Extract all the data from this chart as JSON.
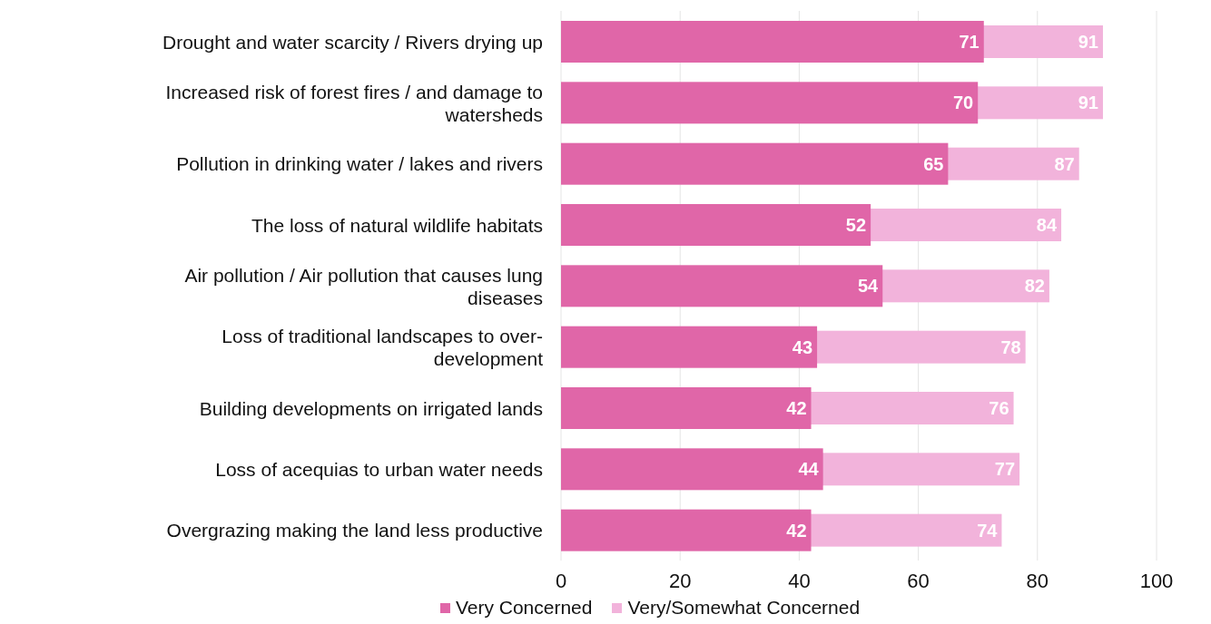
{
  "chart_data": {
    "type": "bar",
    "orientation": "horizontal",
    "categories": [
      "Drought and water scarcity / Rivers drying up",
      "Increased risk of forest fires / and damage to watersheds",
      "Pollution in drinking water / lakes and rivers",
      "The loss of natural wildlife habitats",
      "Air pollution / Air pollution that causes lung diseases",
      "Loss of traditional landscapes to over-development",
      "Building developments on irrigated lands",
      "Loss of acequias to urban water needs",
      "Overgrazing making the land less productive"
    ],
    "series": [
      {
        "name": "Very Concerned",
        "color": "#e066a8",
        "values": [
          71,
          70,
          65,
          52,
          54,
          43,
          42,
          44,
          42
        ]
      },
      {
        "name": "Very/Somewhat Concerned",
        "color": "#f2b3db",
        "values": [
          91,
          91,
          87,
          84,
          82,
          78,
          76,
          77,
          74
        ]
      }
    ],
    "xlim": [
      0,
      100
    ],
    "xticks": [
      0,
      20,
      40,
      60,
      80,
      100
    ],
    "grid": "x",
    "legend": "bottom",
    "data_labels": true
  }
}
